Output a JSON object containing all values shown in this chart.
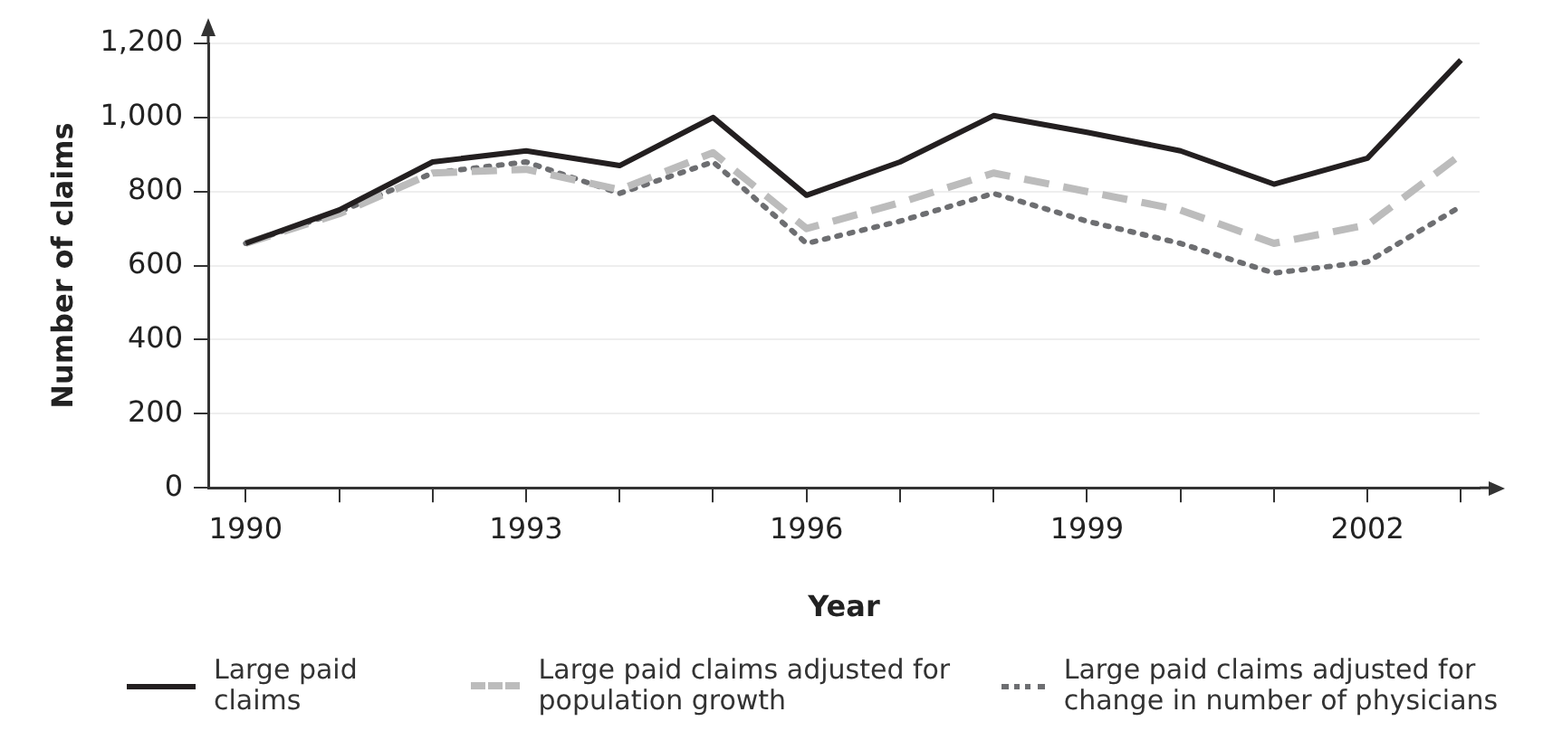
{
  "chart_data": {
    "type": "line",
    "xlabel": "Year",
    "ylabel": "Number of claims",
    "x": [
      1990,
      1991,
      1992,
      1993,
      1994,
      1995,
      1996,
      1997,
      1998,
      1999,
      2000,
      2001,
      2002,
      2003
    ],
    "series": [
      {
        "name": "Large paid claims",
        "color": "#231f20",
        "line_style": "solid",
        "values": [
          660,
          750,
          880,
          910,
          870,
          1000,
          790,
          880,
          1005,
          960,
          910,
          820,
          890,
          1155
        ]
      },
      {
        "name": "Large paid claims adjusted for population growth",
        "color": "#bcbcbc",
        "line_style": "dashed",
        "values": [
          660,
          740,
          850,
          860,
          805,
          905,
          700,
          770,
          850,
          800,
          750,
          660,
          710,
          900
        ]
      },
      {
        "name": "Large paid claims adjusted for change in number of physicians",
        "color": "#6d6e71",
        "line_style": "dotted",
        "values": [
          660,
          745,
          850,
          880,
          795,
          880,
          660,
          720,
          795,
          720,
          660,
          580,
          610,
          760
        ]
      }
    ],
    "xlim": [
      1989.6,
      2003.2
    ],
    "xticks": [
      1990,
      {
        "value": 1991,
        "label": null
      },
      {
        "value": 1992,
        "label": null
      },
      1993,
      {
        "value": 1994,
        "label": null
      },
      {
        "value": 1995,
        "label": null
      },
      1996,
      {
        "value": 1997,
        "label": null
      },
      {
        "value": 1998,
        "label": null
      },
      1999,
      {
        "value": 2000,
        "label": null
      },
      {
        "value": 2001,
        "label": null
      },
      2002,
      {
        "value": 2003,
        "label": null
      }
    ],
    "ylim": [
      0,
      1200
    ],
    "yticks": [
      0,
      200,
      400,
      600,
      800,
      {
        "value": 1000,
        "label": "1,000"
      },
      {
        "value": 1200,
        "label": "1,200"
      }
    ],
    "grid": "y",
    "legend": "bottom",
    "marker": "none"
  }
}
